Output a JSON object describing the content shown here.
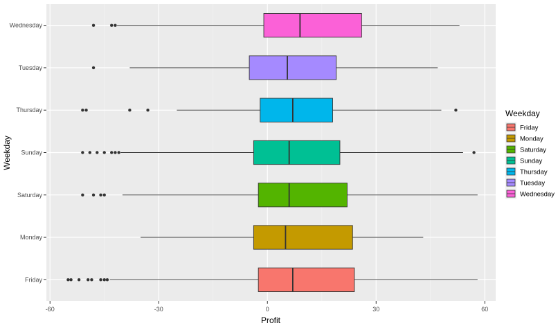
{
  "chart_data": {
    "type": "boxplot",
    "orientation": "horizontal",
    "title": "",
    "xlabel": "Profit",
    "ylabel": "Weekday",
    "xlim": [
      -61,
      63
    ],
    "x_ticks": [
      -60,
      -30,
      0,
      30,
      60
    ],
    "x_tick_labels": [
      "-60",
      "-30",
      "0",
      "30",
      "60"
    ],
    "grid": true,
    "legend": {
      "title": "Weekday",
      "position": "right",
      "entries": [
        "Friday",
        "Monday",
        "Saturday",
        "Sunday",
        "Thursday",
        "Tuesday",
        "Wednesday"
      ]
    },
    "categories": [
      "Friday",
      "Monday",
      "Saturday",
      "Sunday",
      "Thursday",
      "Tuesday",
      "Wednesday"
    ],
    "series": [
      {
        "name": "Friday",
        "color": "#F8766D",
        "whisker_low": -43.5,
        "q1": -2.5,
        "median": 7,
        "q3": 24,
        "whisker_high": 58,
        "outliers": [
          -55,
          -54.2,
          -52,
          -49.5,
          -48.5,
          -46,
          -45,
          -44.2
        ]
      },
      {
        "name": "Monday",
        "color": "#C49A00",
        "whisker_low": -35,
        "q1": -3.8,
        "median": 5,
        "q3": 23.5,
        "whisker_high": 43,
        "outliers": []
      },
      {
        "name": "Saturday",
        "color": "#53B400",
        "whisker_low": -40,
        "q1": -2.5,
        "median": 6,
        "q3": 22,
        "whisker_high": 58,
        "outliers": [
          -51,
          -48,
          -46,
          -45
        ]
      },
      {
        "name": "Sunday",
        "color": "#00C094",
        "whisker_low": -40.5,
        "q1": -3.8,
        "median": 6,
        "q3": 20,
        "whisker_high": 54,
        "outliers": [
          -51,
          -49,
          -47,
          -45,
          -43,
          -42,
          -41,
          57
        ]
      },
      {
        "name": "Thursday",
        "color": "#00B6EB",
        "whisker_low": -25,
        "q1": -2,
        "median": 7,
        "q3": 18,
        "whisker_high": 48,
        "outliers": [
          -51,
          -50,
          -38,
          -33,
          52
        ]
      },
      {
        "name": "Tuesday",
        "color": "#A58AFF",
        "whisker_low": -38,
        "q1": -5,
        "median": 5.5,
        "q3": 19,
        "whisker_high": 47,
        "outliers": [
          -48
        ]
      },
      {
        "name": "Wednesday",
        "color": "#FB61D7",
        "whisker_low": -41.5,
        "q1": -1,
        "median": 9,
        "q3": 26,
        "whisker_high": 53,
        "outliers": [
          -48,
          -43,
          -42
        ]
      }
    ]
  }
}
